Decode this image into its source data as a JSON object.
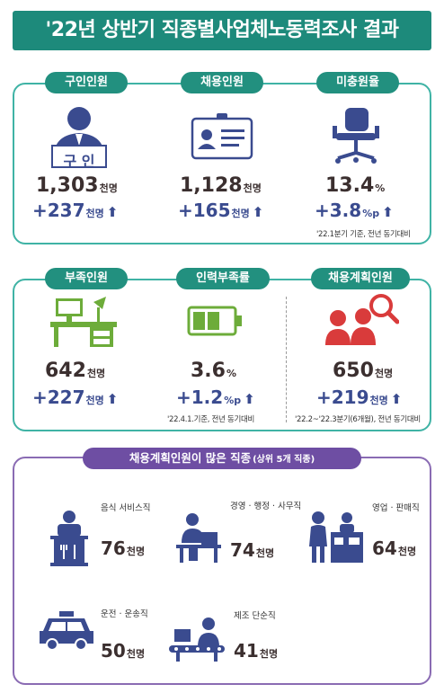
{
  "title": "'22년 상반기 직종별사업체노동력조사 결과",
  "colors": {
    "teal": "#22907f",
    "navy": "#3a4b8f",
    "purple": "#6e4ea3",
    "green": "#6dac3a",
    "red": "#d93b3b"
  },
  "top": [
    {
      "label": "구인인원",
      "value": "1,303",
      "value_unit": "천명",
      "delta": "+237",
      "delta_unit": "천명",
      "icon": "recruiter-sign-icon",
      "sign_text": "구 인"
    },
    {
      "label": "채용인원",
      "value": "1,128",
      "value_unit": "천명",
      "delta": "+165",
      "delta_unit": "천명",
      "icon": "id-card-icon"
    },
    {
      "label": "미충원율",
      "value": "13.4",
      "value_unit": "%",
      "delta": "+3.8",
      "delta_unit": "%p",
      "icon": "office-chair-icon"
    }
  ],
  "top_note": "'22.1분기 기준, 전년 동기대비",
  "middle": [
    {
      "label": "부족인원",
      "value": "642",
      "value_unit": "천명",
      "delta": "+227",
      "delta_unit": "천명",
      "icon": "desk-computer-icon"
    },
    {
      "label": "인력부족률",
      "value": "3.6",
      "value_unit": "%",
      "delta": "+1.2",
      "delta_unit": "%p",
      "icon": "battery-icon"
    },
    {
      "label": "채용계획인원",
      "value": "650",
      "value_unit": "천명",
      "delta": "+219",
      "delta_unit": "천명",
      "icon": "people-search-icon"
    }
  ],
  "middle_note_left": "'22.4.1.기준, 전년 동기대비",
  "middle_note_right": "'22.2~'22.3분기(6개월), 전년 동기대비",
  "jobs_title": "채용계획인원이 많은 직종",
  "jobs_title_suffix": "(상위 5개 직종)",
  "jobs": [
    {
      "name": "음식 서비스직",
      "value": "76",
      "unit": "천명",
      "icon": "waiter-icon"
    },
    {
      "name": "경영 · 행정 · 사무직",
      "value": "74",
      "unit": "천명",
      "icon": "office-worker-icon"
    },
    {
      "name": "영업 · 판매직",
      "value": "64",
      "unit": "천명",
      "icon": "sales-counter-icon"
    },
    {
      "name": "운전 · 운송직",
      "value": "50",
      "unit": "천명",
      "icon": "taxi-icon"
    },
    {
      "name": "제조 단순직",
      "value": "41",
      "unit": "천명",
      "icon": "factory-worker-icon"
    }
  ]
}
